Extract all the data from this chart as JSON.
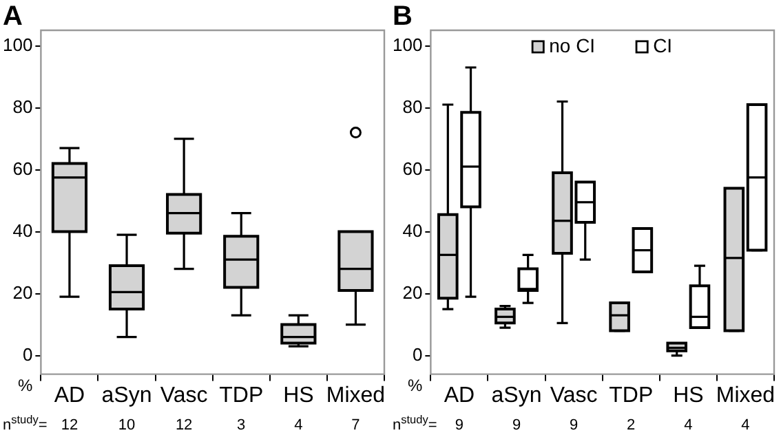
{
  "chart_data": [
    {
      "type": "box",
      "title": "A",
      "ylabel": "%",
      "categories": [
        "AD",
        "aSyn",
        "Vasc",
        "TDP",
        "HS",
        "Mixed"
      ],
      "ylim": [
        -6,
        105
      ],
      "yticks": [
        0,
        20,
        40,
        60,
        80,
        100
      ],
      "grid": false,
      "legend": false,
      "series": [
        {
          "color": "#d3d3d3",
          "boxes": [
            {
              "low": 19,
              "q1": 40,
              "median": 57.5,
              "q3": 62,
              "high": 67
            },
            {
              "low": 6,
              "q1": 15,
              "median": 20.5,
              "q3": 29,
              "high": 39
            },
            {
              "low": 28,
              "q1": 39.5,
              "median": 46,
              "q3": 52,
              "high": 70
            },
            {
              "low": 13,
              "q1": 22,
              "median": 31,
              "q3": 38.5,
              "high": 46
            },
            {
              "low": 3,
              "q1": 4,
              "median": 6,
              "q3": 10,
              "high": 13
            },
            {
              "low": 10,
              "q1": 21,
              "median": 28,
              "q3": 40,
              "high": 40,
              "outliers": [
                72
              ]
            }
          ]
        }
      ],
      "annotations": [
        "n$^{study}$=",
        "12",
        "10",
        "12",
        "3",
        "4",
        "7"
      ]
    },
    {
      "type": "box",
      "title": "B",
      "ylabel": "%",
      "categories": [
        "AD",
        "aSyn",
        "Vasc",
        "TDP",
        "HS",
        "Mixed"
      ],
      "ylim": [
        -6,
        105
      ],
      "yticks": [
        0,
        20,
        40,
        60,
        80,
        100
      ],
      "grid": false,
      "legend": "top",
      "series": [
        {
          "name": "no CI",
          "color": "#d3d3d3",
          "boxes": [
            {
              "low": 15,
              "q1": 18.5,
              "median": 32.5,
              "q3": 45.5,
              "high": 81
            },
            {
              "low": 9,
              "q1": 10.5,
              "median": 12.5,
              "q3": 15,
              "high": 16
            },
            {
              "low": 10.5,
              "q1": 33,
              "median": 43.5,
              "q3": 59,
              "high": 82
            },
            {
              "low": 8,
              "q1": 8,
              "median": 13,
              "q3": 17,
              "high": 17
            },
            {
              "low": 0,
              "q1": 1.5,
              "median": 2.5,
              "q3": 4,
              "high": 4
            },
            {
              "low": 8,
              "q1": 8,
              "median": 31.5,
              "q3": 54,
              "high": 54
            }
          ]
        },
        {
          "name": "CI",
          "color": "#ffffff",
          "boxes": [
            {
              "low": 19,
              "q1": 48,
              "median": 61,
              "q3": 78.5,
              "high": 93
            },
            {
              "low": 17,
              "q1": 21,
              "median": 21.5,
              "q3": 28,
              "high": 32.5
            },
            {
              "low": 31,
              "q1": 43,
              "median": 49.5,
              "q3": 56,
              "high": 56
            },
            {
              "low": 27,
              "q1": 27,
              "median": 34,
              "q3": 41,
              "high": 41
            },
            {
              "low": 9,
              "q1": 9,
              "median": 12.5,
              "q3": 22.5,
              "high": 29
            },
            {
              "low": 34,
              "q1": 34,
              "median": 57.5,
              "q3": 81,
              "high": 81
            }
          ]
        }
      ],
      "annotations": [
        "n$^{study}$=",
        "9",
        "9",
        "9",
        "2",
        "4",
        "4"
      ]
    }
  ]
}
